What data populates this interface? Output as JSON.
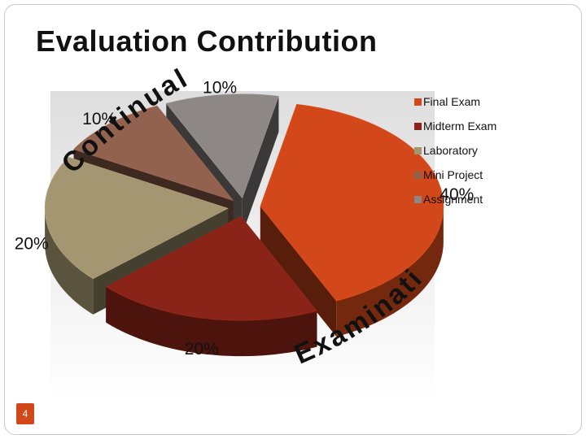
{
  "slide": {
    "title": "Evaluation Contribution",
    "page_number": "4"
  },
  "chart_data": {
    "type": "pie",
    "title": "",
    "series": [
      {
        "name": "Final Exam",
        "value": 40,
        "label": "40%",
        "color": "#d2481a"
      },
      {
        "name": "Midterm Exam",
        "value": 20,
        "label": "20%",
        "color": "#8b2418"
      },
      {
        "name": "Laboratory",
        "value": 20,
        "label": "20%",
        "color": "#a39671"
      },
      {
        "name": "Mini Project",
        "value": 10,
        "label": "10%",
        "color": "#93624f"
      },
      {
        "name": "Assignment",
        "value": 10,
        "label": "10%",
        "color": "#8d8785"
      }
    ],
    "legend_position": "right",
    "three_d": true,
    "annotations": [
      {
        "text": "Continual Assessment",
        "color": "#111111"
      },
      {
        "text": "Examination",
        "color": "#111111"
      }
    ]
  }
}
